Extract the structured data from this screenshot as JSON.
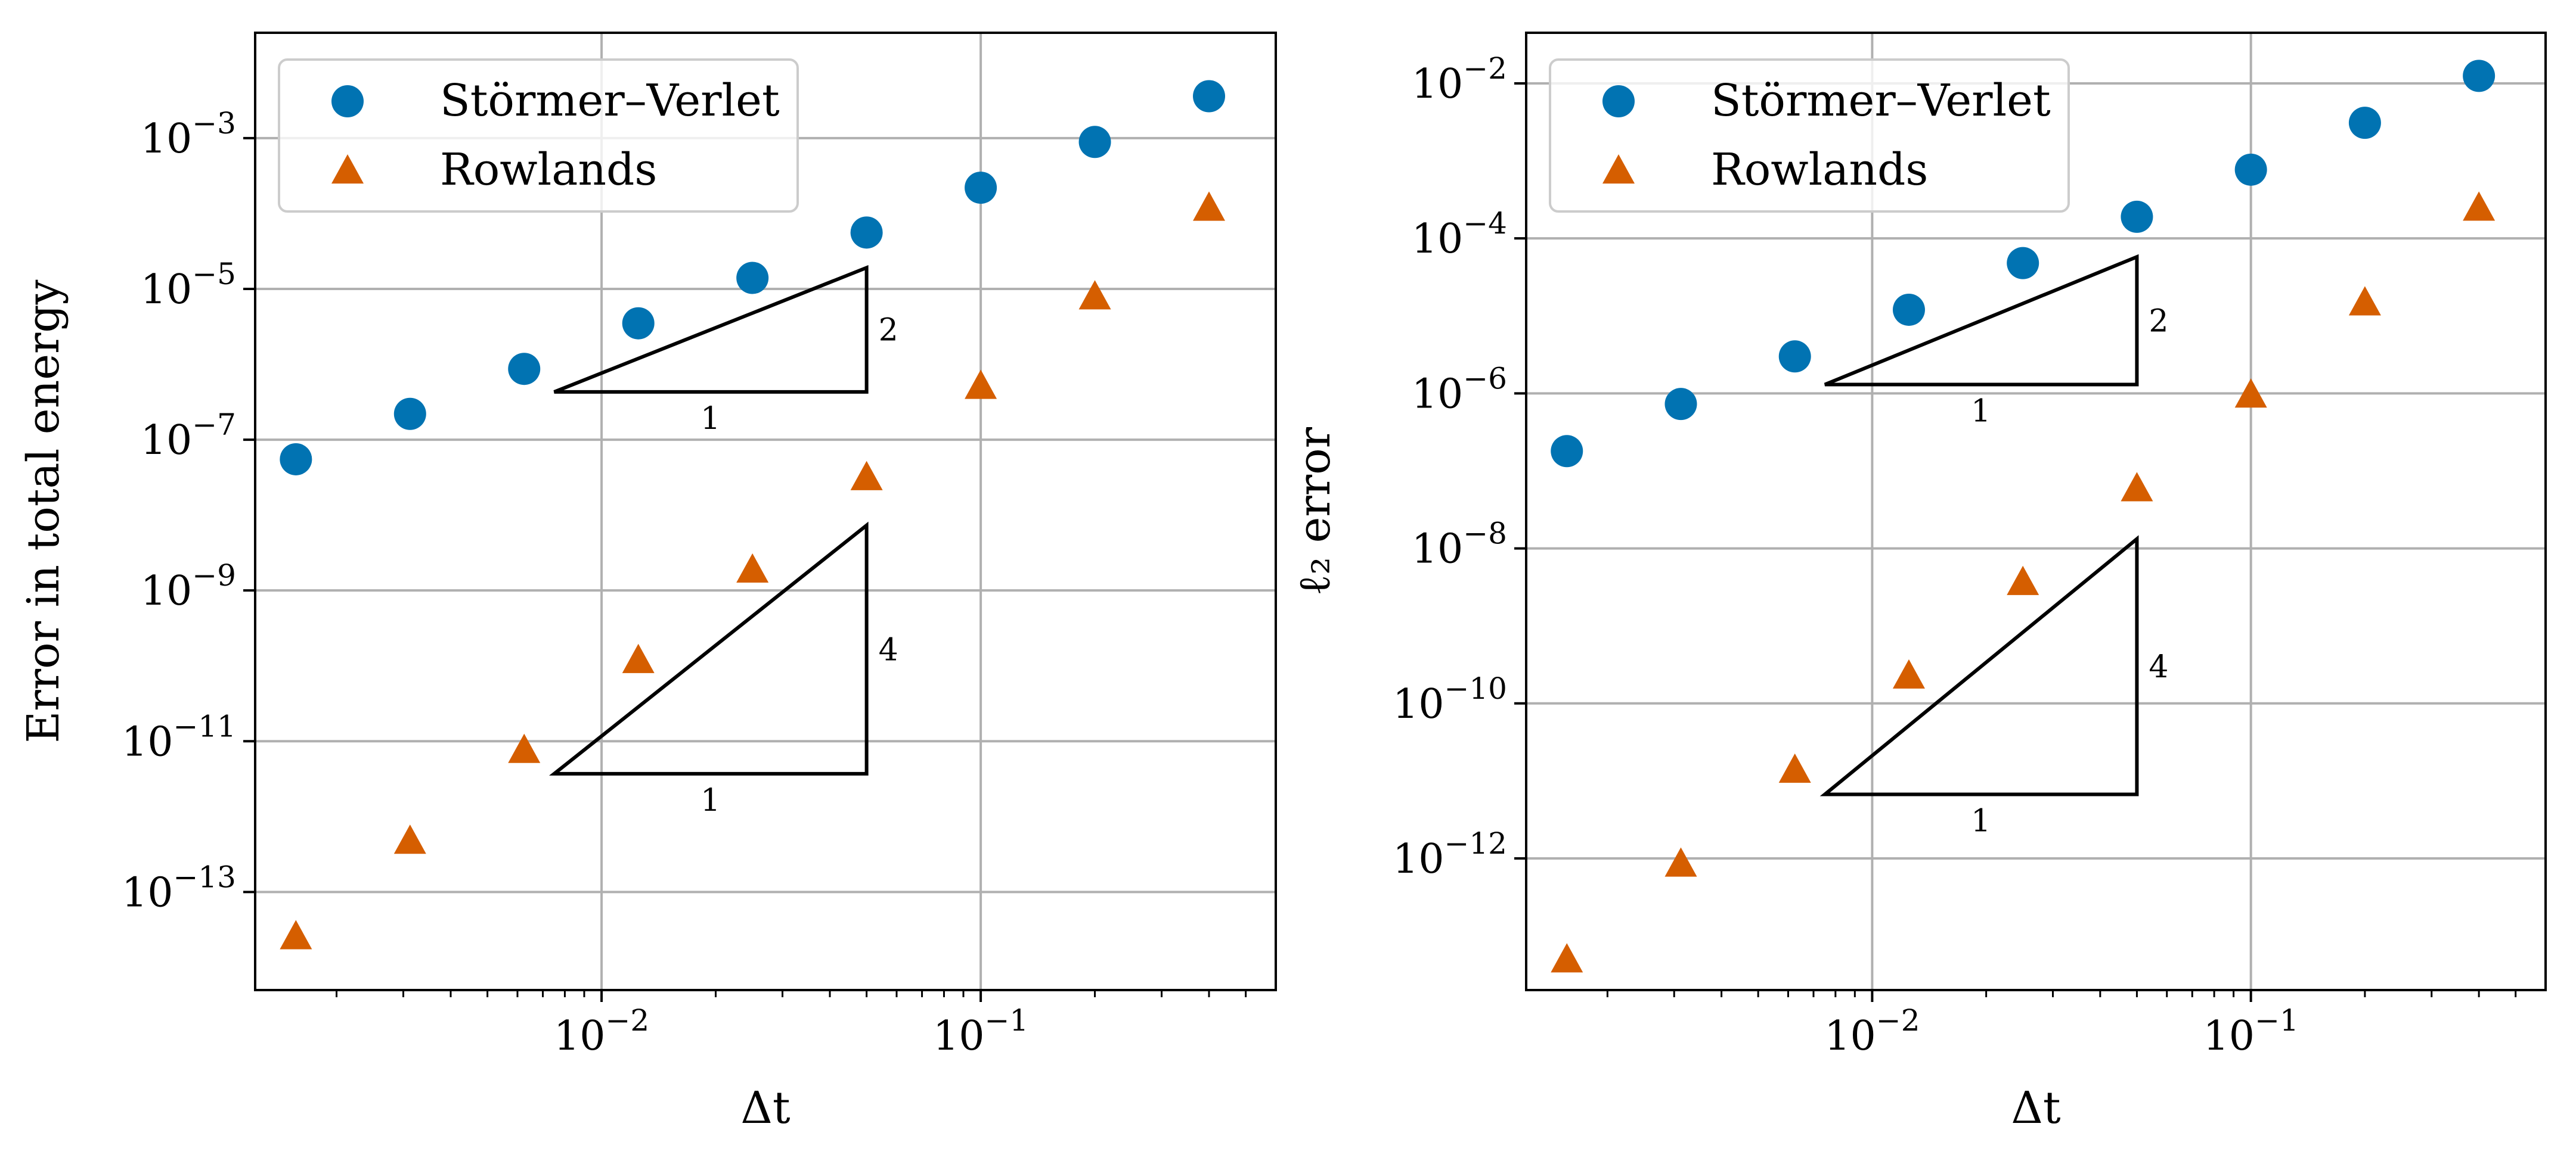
{
  "chart_data": [
    {
      "type": "scatter",
      "xscale": "log",
      "yscale": "log",
      "xlabel": "Δt",
      "ylabel": "Error in total energy",
      "xlim": [
        0.00122,
        0.6
      ],
      "ylim": [
        5e-15,
        0.025
      ],
      "x_tick_labels": [
        {
          "value": 0.01,
          "base": "10",
          "exp": "−2"
        },
        {
          "value": 0.1,
          "base": "10",
          "exp": "−1"
        }
      ],
      "y_tick_labels": [
        {
          "value": 0.001,
          "base": "10",
          "exp": "−3"
        },
        {
          "value": 1e-05,
          "base": "10",
          "exp": "−5"
        },
        {
          "value": 1e-07,
          "base": "10",
          "exp": "−7"
        },
        {
          "value": 1e-09,
          "base": "10",
          "exp": "−9"
        },
        {
          "value": 1e-11,
          "base": "10",
          "exp": "−11"
        },
        {
          "value": 1e-13,
          "base": "10",
          "exp": "−13"
        }
      ],
      "grid": true,
      "legend_position": "top-left",
      "series": [
        {
          "name": "Störmer–Verlet",
          "marker": "circle",
          "color": "#0173b2",
          "x": [
            0.0015625,
            0.003125,
            0.00625,
            0.0125,
            0.025,
            0.05,
            0.1,
            0.2,
            0.4
          ],
          "y": [
            5.5e-08,
            2.2e-07,
            8.7e-07,
            3.5e-06,
            1.4e-05,
            5.6e-05,
            0.00022,
            0.00089,
            0.0036
          ]
        },
        {
          "name": "Rowlands",
          "marker": "triangle",
          "color": "#d55e00",
          "x": [
            0.0015625,
            0.003125,
            0.00625,
            0.0125,
            0.025,
            0.05,
            0.1,
            0.2,
            0.4
          ],
          "y": [
            2.6e-14,
            4.8e-13,
            7.7e-12,
            1.2e-10,
            1.9e-09,
            3.2e-08,
            5.2e-07,
            8e-06,
            0.00012
          ]
        }
      ],
      "slope_triangles": [
        {
          "x": [
            0.0075,
            0.05
          ],
          "y_base": 4.3e-07,
          "order": 2,
          "run_label": "1",
          "rise_label": "2"
        },
        {
          "x": [
            0.0075,
            0.05
          ],
          "y_base": 3.7e-12,
          "order": 4,
          "run_label": "1",
          "rise_label": "4"
        }
      ]
    },
    {
      "type": "scatter",
      "xscale": "log",
      "yscale": "log",
      "xlabel": "Δt",
      "ylabel": "ℓ₂ error",
      "xlim": [
        0.00122,
        0.6
      ],
      "ylim": [
        2e-14,
        0.045
      ],
      "x_tick_labels": [
        {
          "value": 0.01,
          "base": "10",
          "exp": "−2"
        },
        {
          "value": 0.1,
          "base": "10",
          "exp": "−1"
        }
      ],
      "y_tick_labels": [
        {
          "value": 0.01,
          "base": "10",
          "exp": "−2"
        },
        {
          "value": 0.0001,
          "base": "10",
          "exp": "−4"
        },
        {
          "value": 1e-06,
          "base": "10",
          "exp": "−6"
        },
        {
          "value": 1e-08,
          "base": "10",
          "exp": "−8"
        },
        {
          "value": 1e-10,
          "base": "10",
          "exp": "−10"
        },
        {
          "value": 1e-12,
          "base": "10",
          "exp": "−12"
        }
      ],
      "grid": true,
      "legend_position": "top-left",
      "series": [
        {
          "name": "Störmer–Verlet",
          "marker": "circle",
          "color": "#0173b2",
          "x": [
            0.0015625,
            0.003125,
            0.00625,
            0.0125,
            0.025,
            0.05,
            0.1,
            0.2,
            0.4
          ],
          "y": [
            1.8e-07,
            7.3e-07,
            3e-06,
            1.2e-05,
            4.8e-05,
            0.00019,
            0.00077,
            0.0031,
            0.0125
          ]
        },
        {
          "name": "Rowlands",
          "marker": "triangle",
          "color": "#d55e00",
          "x": [
            0.0015625,
            0.003125,
            0.00625,
            0.0125,
            0.025,
            0.05,
            0.1,
            0.2,
            0.4
          ],
          "y": [
            5e-14,
            8.6e-13,
            1.4e-11,
            2.3e-10,
            3.7e-09,
            6e-08,
            9.7e-07,
            1.5e-05,
            0.00025
          ]
        }
      ],
      "slope_triangles": [
        {
          "x": [
            0.0075,
            0.05
          ],
          "y_base": 1.3e-06,
          "order": 2,
          "run_label": "1",
          "rise_label": "2"
        },
        {
          "x": [
            0.0075,
            0.05
          ],
          "y_base": 6.7e-12,
          "order": 4,
          "run_label": "1",
          "rise_label": "4"
        }
      ]
    }
  ]
}
